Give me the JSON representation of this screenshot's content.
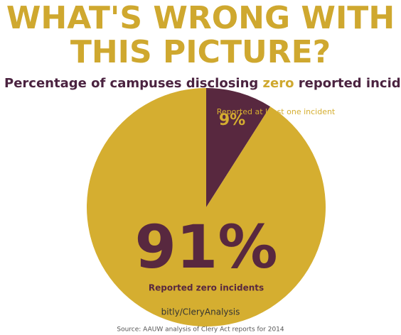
{
  "chart_data": {
    "type": "pie",
    "title": [
      "WHAT'S WRONG WITH",
      "THIS PICTURE?"
    ],
    "subtitle": [
      "Percentage of campuses disclosing ",
      "zero",
      " reported incidents of rap"
    ],
    "categories": [
      "Reported at least one incident",
      "Reported zero incidents"
    ],
    "values": [
      9,
      91
    ],
    "value_labels": [
      "9%",
      "91%"
    ],
    "colors": [
      "#58283f",
      "#d5ae30"
    ],
    "link": "bitly/CleryAnalysis",
    "source": "Source: AAUW analysis of Clery Act reports for 2014"
  }
}
